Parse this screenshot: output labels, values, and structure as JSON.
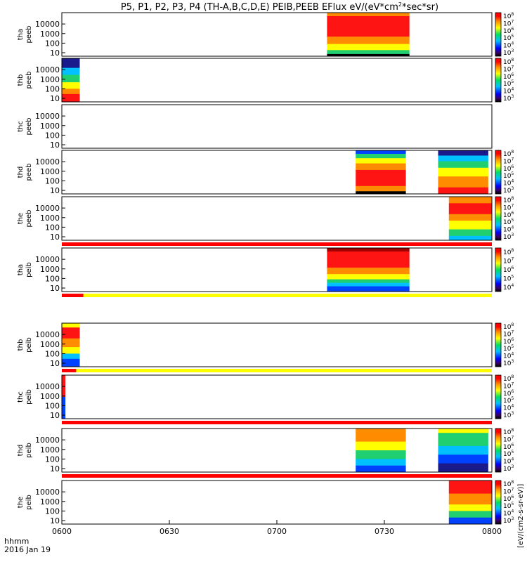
{
  "title": "P5, P1, P2, P3, P4 (TH-A,B,C,D,E) PEIB,PEEB EFlux eV/(eV*cm^2*sec*sr)",
  "title_parts": {
    "main": "P5, P1, P2, P3, P4 (TH-A,B,C,D,E) PEIB,PEEB EFlux eV/(eV*cm",
    "sup": "2",
    "tail": "*sec*sr)"
  },
  "colorbar_unit": "[eV/(cm2-s-sr-eV)]",
  "x_axis": {
    "ticks": [
      "0600",
      "0630",
      "0700",
      "0730",
      "0800"
    ],
    "label_unit": "hhmm",
    "label_date": "2016 Jan 19",
    "range_hours": [
      6.0,
      8.0
    ]
  },
  "y_axis": {
    "scale": "log",
    "ticks": [
      "10",
      "100",
      "1000",
      "10000"
    ]
  },
  "colors": {
    "darkblue": "#1a1a8c",
    "blue": "#0040ff",
    "cyan": "#00c0ff",
    "green": "#20d070",
    "yellow": "#ffff00",
    "orange": "#ff8c00",
    "red": "#ff1414",
    "darkred": "#a00000",
    "black": "#000000"
  },
  "chart_data": {
    "type": "heatmap",
    "title": "P5, P1, P2, P3, P4 (TH-A,B,C,D,E) PEIB,PEEB EFlux eV/(eV*cm^2*sec*sr)",
    "x_unit": "hhmm",
    "date": "2016 Jan 19",
    "panels": [
      {
        "label": [
          "tha",
          "peeb"
        ],
        "cb_ticks": [
          "10^3",
          "10^4",
          "10^5",
          "10^6",
          "10^7",
          "10^8"
        ],
        "cb_side": "",
        "blocks": [
          {
            "t0": "07:14",
            "t1": "07:37",
            "palette": "peeb_high"
          }
        ],
        "bar": null
      },
      {
        "label": [
          "thb",
          "peeb"
        ],
        "cb_ticks": [
          "10^3",
          "10^4",
          "10^5",
          "10^6",
          "10^7",
          "10^8"
        ],
        "cb_side": "",
        "blocks": [
          {
            "t0": "06:00",
            "t1": "06:05",
            "palette": "peeb_low"
          }
        ],
        "bar": null
      },
      {
        "label": [
          "thc",
          "peeb"
        ],
        "cb_ticks": [],
        "cb_side": "",
        "blocks": [],
        "bar": null
      },
      {
        "label": [
          "thd",
          "peeb"
        ],
        "cb_ticks": [
          "10^3",
          "10^4",
          "10^5",
          "10^6",
          "10^7",
          "10^8"
        ],
        "cb_side": "",
        "blocks": [
          {
            "t0": "07:22",
            "t1": "07:36",
            "palette": "peeb_mid"
          },
          {
            "t0": "07:45",
            "t1": "07:59",
            "palette": "peeb_mid2"
          }
        ],
        "bar": null
      },
      {
        "label": [
          "the",
          "peeb"
        ],
        "cb_ticks": [
          "10^3",
          "10^4",
          "10^5",
          "10^6",
          "10^7",
          "10^8"
        ],
        "cb_side": "",
        "blocks": [
          {
            "t0": "07:48",
            "t1": "08:00",
            "palette": "peeb_the"
          }
        ],
        "bar": "red"
      },
      {
        "label": [
          "tha",
          "peib"
        ],
        "cb_ticks": [
          "10^4",
          "10^5",
          "10^6",
          "10^7",
          "10^8"
        ],
        "cb_side": "",
        "blocks": [
          {
            "t0": "07:14",
            "t1": "07:37",
            "palette": "peib_a"
          }
        ],
        "bar": "red_yellow_late"
      },
      {
        "label": [
          "thb",
          "peib"
        ],
        "cb_ticks": [
          "10^3",
          "10^4",
          "10^5",
          "10^6",
          "10^7",
          "10^8"
        ],
        "cb_side": "",
        "blocks": [
          {
            "t0": "06:00",
            "t1": "06:05",
            "palette": "peib_b"
          }
        ],
        "bar": "red_yellow_early"
      },
      {
        "label": [
          "thc",
          "peib"
        ],
        "cb_ticks": [
          "10^3",
          "10^4",
          "10^5",
          "10^6",
          "10^7",
          "10^8"
        ],
        "cb_side": "",
        "blocks": [
          {
            "t0": "06:00",
            "t1": "06:01",
            "palette": "peib_c"
          }
        ],
        "bar": "red"
      },
      {
        "label": [
          "thd",
          "peib"
        ],
        "cb_ticks": [
          "10^3",
          "10^4",
          "10^5",
          "10^6",
          "10^7",
          "10^8"
        ],
        "cb_side": "",
        "blocks": [
          {
            "t0": "07:22",
            "t1": "07:36",
            "palette": "peib_d"
          },
          {
            "t0": "07:45",
            "t1": "07:59",
            "palette": "peib_d2"
          }
        ],
        "bar": "red"
      },
      {
        "label": [
          "the",
          "peib"
        ],
        "cb_ticks": [
          "10^3",
          "10^4",
          "10^5",
          "10^6",
          "10^7",
          "10^8"
        ],
        "cb_side": "",
        "blocks": [
          {
            "t0": "07:48",
            "t1": "08:00",
            "palette": "peib_e"
          }
        ],
        "bar": null
      }
    ]
  }
}
